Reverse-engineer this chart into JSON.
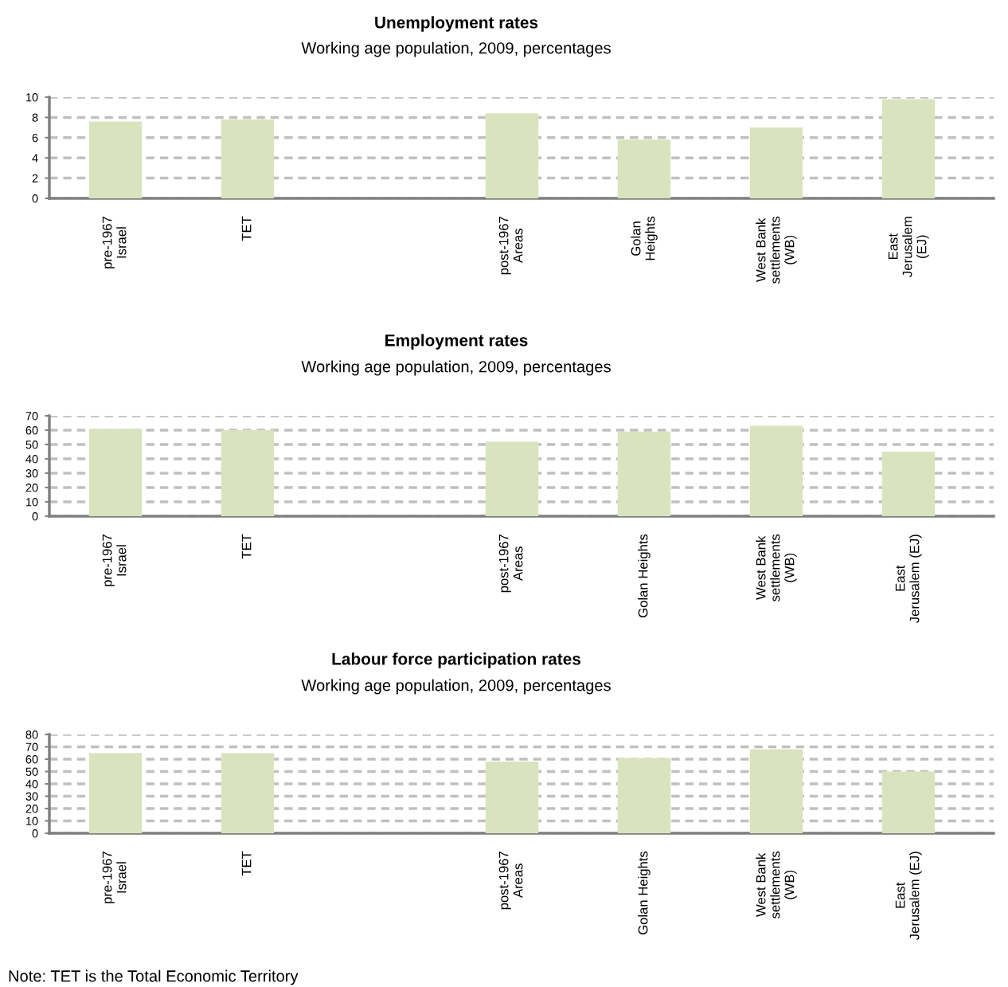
{
  "chart_data": [
    {
      "type": "bar",
      "title": "Unemployment rates",
      "subtitle": "Working age population, 2009, percentages",
      "categories": [
        "pre-1967\nIsrael",
        "TET",
        null,
        "post-1967\nAreas",
        "Golan\nHeights",
        "West Bank\nsettlements\n(WB)",
        "East\nJerusalem\n(EJ)"
      ],
      "values": [
        7.6,
        7.8,
        null,
        8.4,
        5.8,
        7.0,
        9.8
      ],
      "color": "#d9e4bf",
      "ylim": [
        0,
        10
      ],
      "yticks": [
        0,
        2,
        4,
        6,
        8,
        10
      ],
      "grid": "y"
    },
    {
      "type": "bar",
      "title": "Employment rates",
      "subtitle": "Working age population, 2009, percentages",
      "categories": [
        "pre-1967\nIsrael",
        "TET",
        null,
        "post-1967\nAreas",
        "Golan Heights",
        "West Bank\nsettlements\n(WB)",
        "East\nJerusalem (EJ)"
      ],
      "values": [
        61,
        60,
        null,
        52,
        59,
        63,
        45
      ],
      "color": "#d9e4bf",
      "ylim": [
        0,
        70
      ],
      "yticks": [
        0,
        10,
        20,
        30,
        40,
        50,
        60,
        70
      ],
      "grid": "y"
    },
    {
      "type": "bar",
      "title": "Labour force participation rates",
      "subtitle": "Working age population, 2009, percentages",
      "categories": [
        "pre-1967\nIsrael",
        "TET",
        null,
        "post-1967\nAreas",
        "Golan Heights",
        "West Bank\nsettlements\n(WB)",
        "East\nJerusalem (EJ)"
      ],
      "values": [
        65,
        65,
        null,
        58,
        61,
        68,
        50
      ],
      "color": "#d9e4bf",
      "ylim": [
        0,
        80
      ],
      "yticks": [
        0,
        10,
        20,
        30,
        40,
        50,
        60,
        70,
        80
      ],
      "grid": "y",
      "annotations": [
        "Note: TET is the Total Economic Territory"
      ]
    }
  ]
}
